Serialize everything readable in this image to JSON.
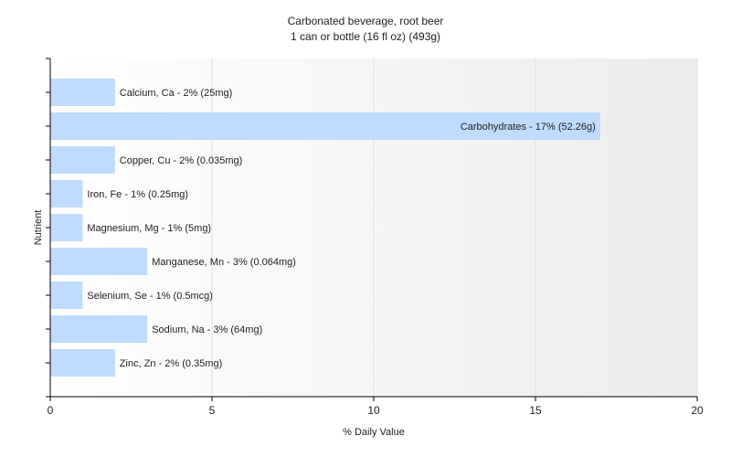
{
  "chart_data": {
    "type": "bar",
    "orientation": "horizontal",
    "title": "Carbonated beverage, root beer",
    "subtitle": "1 can or bottle (16 fl oz) (493g)",
    "xlabel": "% Daily Value",
    "ylabel": "Nutrient",
    "xlim": [
      0,
      20
    ],
    "xticks": [
      0,
      5,
      10,
      15,
      20
    ],
    "grid": true,
    "bar_color": "#bfdbff",
    "categories": [
      "Calcium, Ca",
      "Carbohydrates",
      "Copper, Cu",
      "Iron, Fe",
      "Magnesium, Mg",
      "Manganese, Mn",
      "Selenium, Se",
      "Sodium, Na",
      "Zinc, Zn"
    ],
    "values": [
      2,
      17,
      2,
      1,
      1,
      3,
      1,
      3,
      2
    ],
    "data_labels": [
      "Calcium, Ca - 2% (25mg)",
      "Carbohydrates - 17% (52.26g)",
      "Copper, Cu - 2% (0.035mg)",
      "Iron, Fe - 1% (0.25mg)",
      "Magnesium, Mg - 1% (5mg)",
      "Manganese, Mn - 3% (0.064mg)",
      "Selenium, Se - 1% (0.5mcg)",
      "Sodium, Na - 3% (64mg)",
      "Zinc, Zn - 2% (0.35mg)"
    ]
  }
}
